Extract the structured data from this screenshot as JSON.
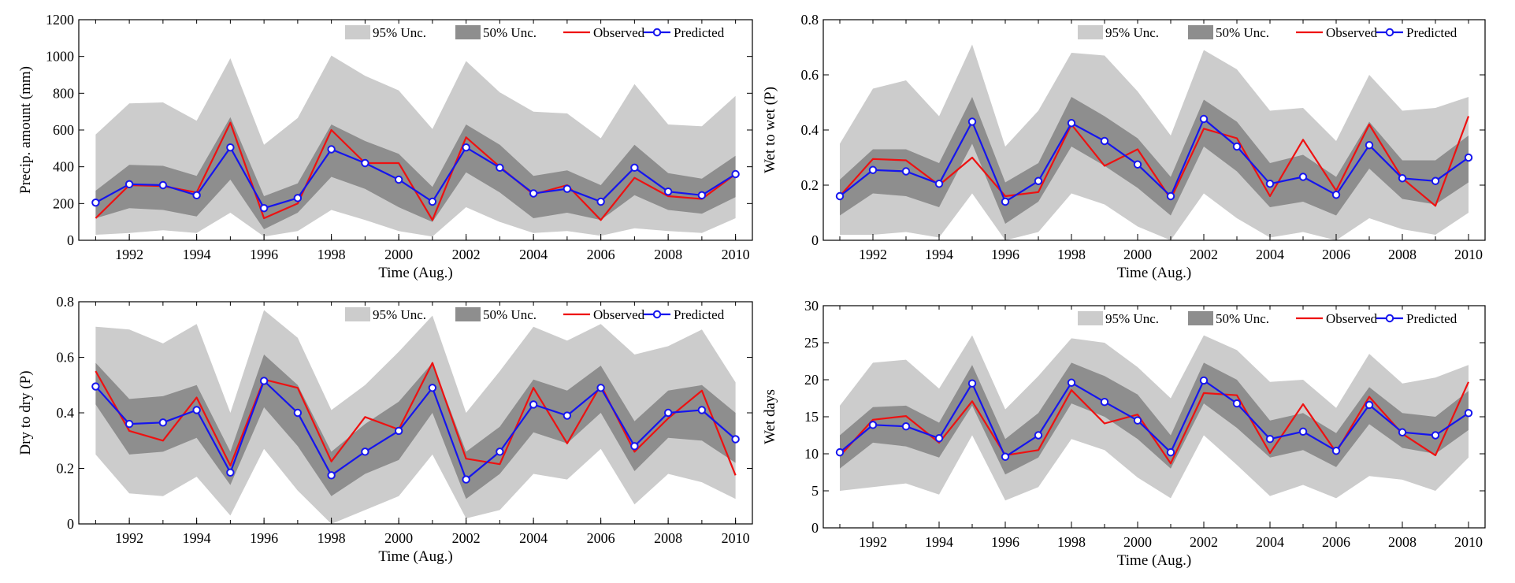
{
  "colors": {
    "band95": "#cccccc",
    "band50": "#8e8e8e",
    "observed": "#ee1111",
    "predicted": "#1515ee"
  },
  "legend": {
    "band95": "95% Unc.",
    "band50": "50% Unc.",
    "observed": "Observed",
    "predicted": "Predicted"
  },
  "chart_data": [
    {
      "type": "line",
      "id": "precip",
      "title": "",
      "xlabel": "Time (Aug.)",
      "ylabel": "Precip. amount (mm)",
      "xlim": [
        1990.5,
        2010.5
      ],
      "ylim": [
        0,
        1200
      ],
      "yticks": [
        0,
        200,
        400,
        600,
        800,
        1000,
        1200
      ],
      "yticklabels": [
        "0",
        "200",
        "400",
        "600",
        "800",
        "1000",
        "1200"
      ],
      "xticks": [
        1992,
        1994,
        1996,
        1998,
        2000,
        2002,
        2004,
        2006,
        2008,
        2010
      ],
      "xticklabels": [
        "1992",
        "1994",
        "1996",
        "1998",
        "2000",
        "2002",
        "2004",
        "2006",
        "2008",
        "2010"
      ],
      "legend_position": "top-right",
      "x": [
        1991,
        1992,
        1993,
        1994,
        1995,
        1996,
        1997,
        1998,
        1999,
        2000,
        2001,
        2002,
        2003,
        2004,
        2005,
        2006,
        2007,
        2008,
        2009,
        2010
      ],
      "observed": [
        120,
        300,
        295,
        260,
        640,
        120,
        200,
        600,
        420,
        420,
        110,
        560,
        400,
        250,
        300,
        110,
        340,
        240,
        225,
        360
      ],
      "predicted": [
        205,
        305,
        300,
        245,
        505,
        175,
        230,
        495,
        420,
        330,
        210,
        505,
        395,
        255,
        280,
        210,
        395,
        265,
        245,
        360
      ],
      "band95": {
        "lower": [
          30,
          40,
          55,
          40,
          150,
          20,
          50,
          165,
          110,
          50,
          20,
          180,
          100,
          40,
          50,
          25,
          65,
          50,
          40,
          120
        ],
        "upper": [
          575,
          745,
          750,
          650,
          990,
          520,
          665,
          1005,
          895,
          815,
          605,
          975,
          805,
          700,
          690,
          555,
          850,
          630,
          620,
          785
        ]
      },
      "band50": {
        "lower": [
          120,
          175,
          165,
          130,
          330,
          60,
          150,
          345,
          280,
          180,
          100,
          370,
          260,
          120,
          150,
          110,
          245,
          165,
          145,
          235
        ],
        "upper": [
          270,
          410,
          405,
          350,
          670,
          240,
          310,
          630,
          540,
          470,
          290,
          630,
          520,
          350,
          380,
          300,
          520,
          365,
          335,
          460
        ]
      }
    },
    {
      "type": "line",
      "id": "wet-to-wet",
      "title": "",
      "xlabel": "Time (Aug.)",
      "ylabel": "Wet to wet (P)",
      "xlim": [
        1990.5,
        2010.5
      ],
      "ylim": [
        0,
        0.8
      ],
      "yticks": [
        0,
        0.2,
        0.4,
        0.6,
        0.8
      ],
      "yticklabels": [
        "0",
        "0.2",
        "0.4",
        "0.6",
        "0.8"
      ],
      "xticks": [
        1992,
        1994,
        1996,
        1998,
        2000,
        2002,
        2004,
        2006,
        2008,
        2010
      ],
      "xticklabels": [
        "1992",
        "1994",
        "1996",
        "1998",
        "2000",
        "2002",
        "2004",
        "2006",
        "2008",
        "2010"
      ],
      "legend_position": "top-right",
      "x": [
        1991,
        1992,
        1993,
        1994,
        1995,
        1996,
        1997,
        1998,
        1999,
        2000,
        2001,
        2002,
        2003,
        2004,
        2005,
        2006,
        2007,
        2008,
        2009,
        2010
      ],
      "observed": [
        0.16,
        0.295,
        0.29,
        0.2,
        0.3,
        0.16,
        0.175,
        0.42,
        0.27,
        0.33,
        0.15,
        0.405,
        0.37,
        0.16,
        0.365,
        0.18,
        0.42,
        0.225,
        0.125,
        0.45
      ],
      "predicted": [
        0.16,
        0.255,
        0.25,
        0.205,
        0.43,
        0.14,
        0.215,
        0.425,
        0.36,
        0.275,
        0.16,
        0.44,
        0.34,
        0.205,
        0.23,
        0.165,
        0.345,
        0.225,
        0.215,
        0.3
      ],
      "band95": {
        "lower": [
          0.02,
          0.02,
          0.03,
          0.01,
          0.17,
          0.0,
          0.03,
          0.17,
          0.13,
          0.05,
          0.0,
          0.17,
          0.08,
          0.01,
          0.03,
          0.0,
          0.08,
          0.04,
          0.02,
          0.1
        ],
        "upper": [
          0.35,
          0.55,
          0.58,
          0.45,
          0.71,
          0.34,
          0.47,
          0.68,
          0.67,
          0.54,
          0.38,
          0.69,
          0.62,
          0.47,
          0.48,
          0.36,
          0.6,
          0.47,
          0.48,
          0.52
        ]
      },
      "band50": {
        "lower": [
          0.09,
          0.17,
          0.16,
          0.12,
          0.35,
          0.06,
          0.14,
          0.34,
          0.27,
          0.19,
          0.09,
          0.34,
          0.25,
          0.12,
          0.14,
          0.09,
          0.26,
          0.15,
          0.13,
          0.21
        ],
        "upper": [
          0.22,
          0.33,
          0.33,
          0.28,
          0.52,
          0.21,
          0.28,
          0.52,
          0.45,
          0.37,
          0.23,
          0.51,
          0.43,
          0.28,
          0.31,
          0.23,
          0.43,
          0.29,
          0.29,
          0.38
        ]
      }
    },
    {
      "type": "line",
      "id": "dry-to-dry",
      "title": "",
      "xlabel": "Time (Aug.)",
      "ylabel": "Dry to dry (P)",
      "xlim": [
        1990.5,
        2010.5
      ],
      "ylim": [
        0,
        0.8
      ],
      "yticks": [
        0,
        0.2,
        0.4,
        0.6,
        0.8
      ],
      "yticklabels": [
        "0",
        "0.2",
        "0.4",
        "0.6",
        "0.8"
      ],
      "xticks": [
        1992,
        1994,
        1996,
        1998,
        2000,
        2002,
        2004,
        2006,
        2008,
        2010
      ],
      "xticklabels": [
        "1992",
        "1994",
        "1996",
        "1998",
        "2000",
        "2002",
        "2004",
        "2006",
        "2008",
        "2010"
      ],
      "legend_position": "top-right",
      "x": [
        1991,
        1992,
        1993,
        1994,
        1995,
        1996,
        1997,
        1998,
        1999,
        2000,
        2001,
        2002,
        2003,
        2004,
        2005,
        2006,
        2007,
        2008,
        2009,
        2010
      ],
      "observed": [
        0.55,
        0.335,
        0.3,
        0.455,
        0.21,
        0.52,
        0.49,
        0.225,
        0.385,
        0.34,
        0.58,
        0.235,
        0.215,
        0.49,
        0.29,
        0.5,
        0.26,
        0.38,
        0.48,
        0.175
      ],
      "predicted": [
        0.495,
        0.36,
        0.365,
        0.41,
        0.185,
        0.515,
        0.4,
        0.175,
        0.26,
        0.335,
        0.49,
        0.16,
        0.26,
        0.43,
        0.39,
        0.49,
        0.28,
        0.4,
        0.41,
        0.305
      ],
      "band95": {
        "lower": [
          0.25,
          0.11,
          0.1,
          0.17,
          0.03,
          0.27,
          0.12,
          0.0,
          0.05,
          0.1,
          0.25,
          0.02,
          0.05,
          0.18,
          0.16,
          0.27,
          0.07,
          0.18,
          0.15,
          0.09
        ],
        "upper": [
          0.71,
          0.7,
          0.65,
          0.72,
          0.4,
          0.77,
          0.67,
          0.41,
          0.5,
          0.62,
          0.75,
          0.4,
          0.55,
          0.71,
          0.66,
          0.72,
          0.61,
          0.64,
          0.7,
          0.51
        ]
      },
      "band50": {
        "lower": [
          0.43,
          0.25,
          0.26,
          0.31,
          0.14,
          0.42,
          0.28,
          0.1,
          0.18,
          0.23,
          0.4,
          0.09,
          0.18,
          0.33,
          0.29,
          0.4,
          0.19,
          0.31,
          0.3,
          0.22
        ],
        "upper": [
          0.58,
          0.45,
          0.46,
          0.5,
          0.26,
          0.61,
          0.5,
          0.26,
          0.36,
          0.44,
          0.58,
          0.26,
          0.35,
          0.52,
          0.48,
          0.57,
          0.37,
          0.48,
          0.5,
          0.4
        ]
      }
    },
    {
      "type": "line",
      "id": "wet-days",
      "title": "",
      "xlabel": "Time (Aug.)",
      "ylabel": "Wet days",
      "xlim": [
        1990.5,
        2010.5
      ],
      "ylim": [
        0,
        30
      ],
      "yticks": [
        0,
        5,
        10,
        15,
        20,
        25,
        30
      ],
      "yticklabels": [
        "0",
        "5",
        "10",
        "15",
        "20",
        "25",
        "30"
      ],
      "xticks": [
        1992,
        1994,
        1996,
        1998,
        2000,
        2002,
        2004,
        2006,
        2008,
        2010
      ],
      "xticklabels": [
        "1992",
        "1994",
        "1996",
        "1998",
        "2000",
        "2002",
        "2004",
        "2006",
        "2008",
        "2010"
      ],
      "legend_position": "top-right",
      "x": [
        1991,
        1992,
        1993,
        1994,
        1995,
        1996,
        1997,
        1998,
        1999,
        2000,
        2001,
        2002,
        2003,
        2004,
        2005,
        2006,
        2007,
        2008,
        2009,
        2010
      ],
      "observed": [
        9.7,
        14.6,
        15.1,
        11.5,
        17.1,
        9.8,
        10.5,
        18.6,
        14.1,
        15.3,
        8.7,
        18.2,
        17.9,
        10.1,
        16.7,
        10.2,
        17.7,
        12.7,
        9.8,
        19.7
      ],
      "predicted": [
        10.2,
        13.9,
        13.7,
        12.1,
        19.5,
        9.6,
        12.5,
        19.6,
        17.0,
        14.5,
        10.2,
        19.9,
        16.8,
        12.0,
        13.0,
        10.4,
        16.6,
        12.9,
        12.5,
        15.5
      ],
      "band95": {
        "lower": [
          5.0,
          5.5,
          6.0,
          4.5,
          12.5,
          3.7,
          5.5,
          12.0,
          10.5,
          6.8,
          4.0,
          12.5,
          8.5,
          4.3,
          5.8,
          4.0,
          7.0,
          6.5,
          5.0,
          9.5
        ],
        "upper": [
          16.5,
          22.3,
          22.7,
          18.8,
          26.0,
          16.0,
          20.5,
          25.6,
          25.0,
          21.7,
          17.5,
          26.0,
          24.0,
          19.7,
          20.0,
          16.2,
          23.5,
          19.5,
          20.3,
          22.0
        ]
      },
      "band50": {
        "lower": [
          8.0,
          11.5,
          11.0,
          9.5,
          16.5,
          7.2,
          9.5,
          16.8,
          15.0,
          12.0,
          8.0,
          16.8,
          13.5,
          9.5,
          10.5,
          8.2,
          14.0,
          10.8,
          10.0,
          13.2
        ],
        "upper": [
          12.5,
          16.3,
          16.5,
          14.2,
          22.0,
          12.0,
          15.5,
          22.3,
          20.5,
          18.0,
          12.5,
          22.3,
          20.0,
          14.5,
          15.5,
          12.8,
          19.0,
          15.5,
          15.0,
          18.5
        ]
      }
    }
  ]
}
